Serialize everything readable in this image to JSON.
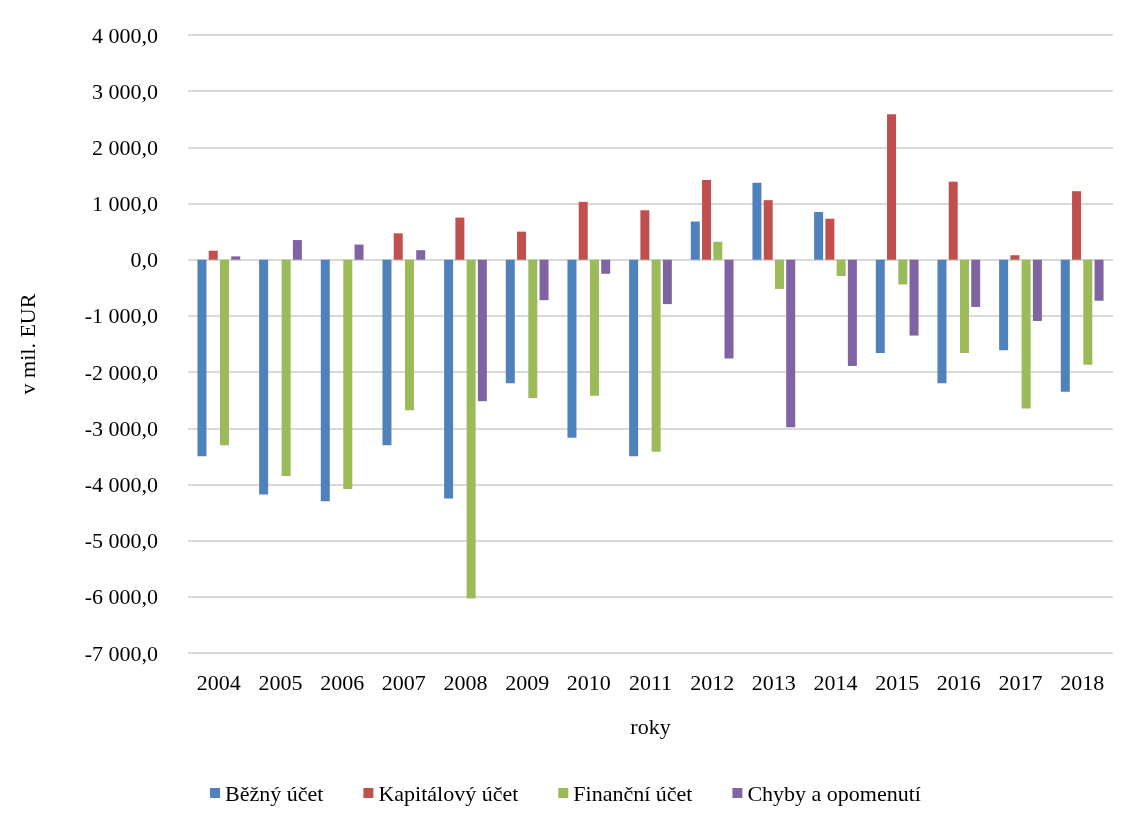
{
  "chart_data": {
    "type": "bar",
    "xlabel": "roky",
    "ylabel": "v mil. EUR",
    "categories": [
      "2004",
      "2005",
      "2006",
      "2007",
      "2008",
      "2009",
      "2010",
      "2011",
      "2012",
      "2013",
      "2014",
      "2015",
      "2016",
      "2017",
      "2018"
    ],
    "series": [
      {
        "name": "Běžný účet",
        "color": "#4f81bd",
        "values": [
          -3500,
          -4180,
          -4300,
          -3300,
          -4250,
          -2200,
          -3170,
          -3500,
          680,
          1370,
          850,
          -1660,
          -2200,
          -1610,
          -2350
        ]
      },
      {
        "name": "Kapitálový účet",
        "color": "#c0504d",
        "values": [
          160,
          null,
          null,
          470,
          750,
          500,
          1030,
          880,
          1420,
          1060,
          730,
          2590,
          1390,
          80,
          1220
        ]
      },
      {
        "name": "Finanční účet",
        "color": "#9bbb59",
        "values": [
          -3300,
          -3850,
          -4080,
          -2680,
          -6030,
          -2460,
          -2420,
          -3420,
          320,
          -520,
          -290,
          -440,
          -1660,
          -2650,
          -1870
        ]
      },
      {
        "name": "Chyby a opomenutí",
        "color": "#8064a2",
        "values": [
          60,
          350,
          270,
          170,
          -2520,
          -720,
          -250,
          -790,
          -1760,
          -2980,
          -1890,
          -1350,
          -840,
          -1090,
          -730
        ]
      }
    ],
    "ylim": [
      -7000,
      4000
    ],
    "yticks": [
      {
        "value": -7000,
        "label": "-7 000,0"
      },
      {
        "value": -6000,
        "label": "-6 000,0"
      },
      {
        "value": -5000,
        "label": "-5 000,0"
      },
      {
        "value": -4000,
        "label": "-4 000,0"
      },
      {
        "value": -3000,
        "label": "-3 000,0"
      },
      {
        "value": -2000,
        "label": "-2 000,0"
      },
      {
        "value": -1000,
        "label": "-1 000,0"
      },
      {
        "value": 0,
        "label": "0,0"
      },
      {
        "value": 1000,
        "label": "1 000,0"
      },
      {
        "value": 2000,
        "label": "2 000,0"
      },
      {
        "value": 3000,
        "label": "3 000,0"
      },
      {
        "value": 4000,
        "label": "4 000,0"
      }
    ],
    "grid": "y",
    "legend": "bottom"
  }
}
